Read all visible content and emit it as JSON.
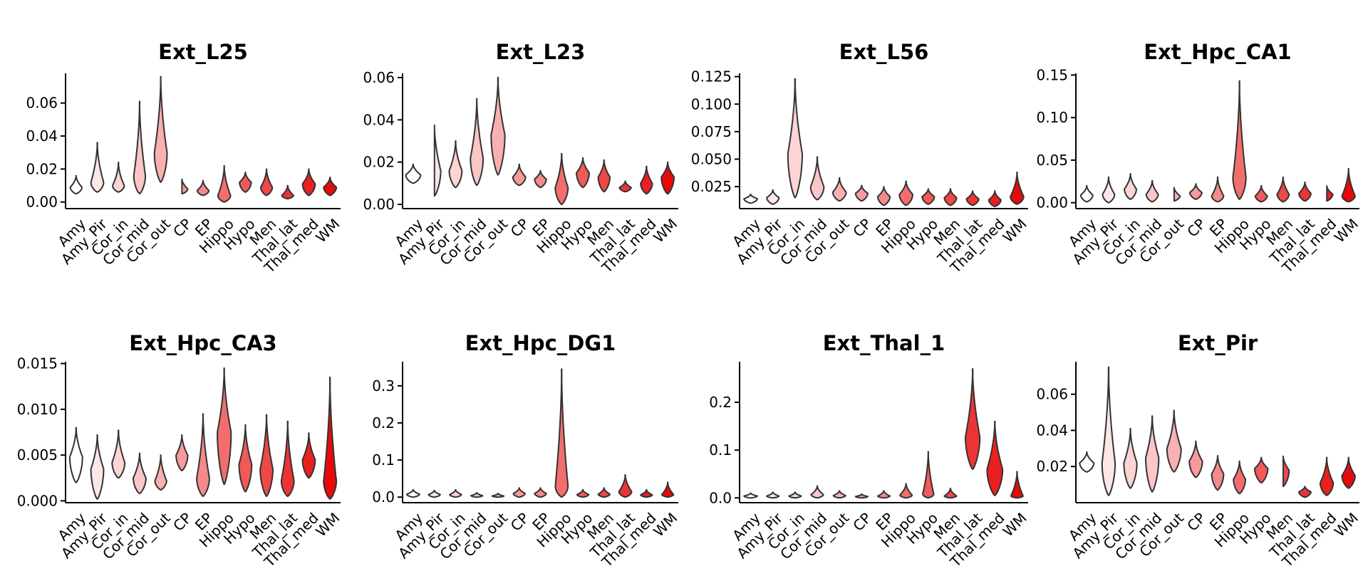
{
  "chart_data": [
    {
      "type": "violin",
      "title": "Ext_L25",
      "categories": [
        "Amy",
        "Amy_Pir",
        "Cor_in",
        "Cor_mid",
        "Cor_out",
        "CP",
        "EP",
        "Hippo",
        "Hypo",
        "Men",
        "Thal_lat",
        "Thal_med",
        "WM"
      ],
      "ylim": [
        -0.004,
        0.078
      ],
      "yticks": [
        0.0,
        0.02,
        0.04,
        0.06
      ],
      "ytick_labels": [
        "0.00",
        "0.02",
        "0.04",
        "0.06"
      ],
      "violins": [
        {
          "min": 0.005,
          "max": 0.016,
          "peak": 0.009,
          "width": 0.55
        },
        {
          "min": 0.006,
          "max": 0.036,
          "peak": 0.012,
          "width": 0.6
        },
        {
          "min": 0.006,
          "max": 0.024,
          "peak": 0.01,
          "width": 0.55
        },
        {
          "min": 0.005,
          "max": 0.061,
          "peak": 0.016,
          "width": 0.55
        },
        {
          "min": 0.012,
          "max": 0.076,
          "peak": 0.03,
          "width": 0.6
        },
        {
          "min": 0.005,
          "max": 0.014,
          "peak": 0.008,
          "width": 0.55
        },
        {
          "min": 0.004,
          "max": 0.013,
          "peak": 0.007,
          "width": 0.55
        },
        {
          "min": 0.0,
          "max": 0.022,
          "peak": 0.004,
          "width": 0.6
        },
        {
          "min": 0.006,
          "max": 0.018,
          "peak": 0.012,
          "width": 0.55
        },
        {
          "min": 0.004,
          "max": 0.02,
          "peak": 0.009,
          "width": 0.55
        },
        {
          "min": 0.002,
          "max": 0.01,
          "peak": 0.004,
          "width": 0.55
        },
        {
          "min": 0.004,
          "max": 0.02,
          "peak": 0.011,
          "width": 0.6
        },
        {
          "min": 0.004,
          "max": 0.015,
          "peak": 0.009,
          "width": 0.6
        }
      ]
    },
    {
      "type": "violin",
      "title": "Ext_L23",
      "categories": [
        "Amy",
        "Amy_Pir",
        "Cor_in",
        "Cor_mid",
        "Cor_out",
        "CP",
        "EP",
        "Hippo",
        "Hypo",
        "Men",
        "Thal_lat",
        "Thal_med",
        "WM"
      ],
      "ylim": [
        -0.002,
        0.062
      ],
      "yticks": [
        0.0,
        0.02,
        0.04,
        0.06
      ],
      "ytick_labels": [
        "0.00",
        "0.02",
        "0.04",
        "0.06"
      ],
      "violins": [
        {
          "min": 0.01,
          "max": 0.019,
          "peak": 0.014,
          "width": 0.7
        },
        {
          "min": 0.004,
          "max": 0.038,
          "peak": 0.016,
          "width": 0.6
        },
        {
          "min": 0.008,
          "max": 0.03,
          "peak": 0.016,
          "width": 0.6
        },
        {
          "min": 0.009,
          "max": 0.05,
          "peak": 0.022,
          "width": 0.6
        },
        {
          "min": 0.014,
          "max": 0.06,
          "peak": 0.033,
          "width": 0.65
        },
        {
          "min": 0.009,
          "max": 0.019,
          "peak": 0.013,
          "width": 0.6
        },
        {
          "min": 0.008,
          "max": 0.016,
          "peak": 0.012,
          "width": 0.55
        },
        {
          "min": 0.0,
          "max": 0.024,
          "peak": 0.008,
          "width": 0.6
        },
        {
          "min": 0.008,
          "max": 0.022,
          "peak": 0.015,
          "width": 0.6
        },
        {
          "min": 0.006,
          "max": 0.021,
          "peak": 0.013,
          "width": 0.55
        },
        {
          "min": 0.006,
          "max": 0.011,
          "peak": 0.008,
          "width": 0.55
        },
        {
          "min": 0.005,
          "max": 0.018,
          "peak": 0.01,
          "width": 0.55
        },
        {
          "min": 0.005,
          "max": 0.02,
          "peak": 0.013,
          "width": 0.6
        }
      ]
    },
    {
      "type": "violin",
      "title": "Ext_L56",
      "categories": [
        "Amy",
        "Amy_Pir",
        "Cor_in",
        "Cor_mid",
        "Cor_out",
        "CP",
        "EP",
        "Hippo",
        "Hypo",
        "Men",
        "Thal_lat",
        "Thal_med",
        "WM"
      ],
      "ylim": [
        0.005,
        0.128
      ],
      "yticks": [
        0.025,
        0.05,
        0.075,
        0.1,
        0.125
      ],
      "ytick_labels": [
        "0.025",
        "0.050",
        "0.075",
        "0.100",
        "0.125"
      ],
      "violins": [
        {
          "min": 0.01,
          "max": 0.018,
          "peak": 0.014,
          "width": 0.6
        },
        {
          "min": 0.009,
          "max": 0.022,
          "peak": 0.015,
          "width": 0.55
        },
        {
          "min": 0.015,
          "max": 0.123,
          "peak": 0.055,
          "width": 0.65
        },
        {
          "min": 0.013,
          "max": 0.052,
          "peak": 0.025,
          "width": 0.6
        },
        {
          "min": 0.012,
          "max": 0.033,
          "peak": 0.02,
          "width": 0.6
        },
        {
          "min": 0.012,
          "max": 0.026,
          "peak": 0.019,
          "width": 0.55
        },
        {
          "min": 0.008,
          "max": 0.025,
          "peak": 0.016,
          "width": 0.55
        },
        {
          "min": 0.008,
          "max": 0.03,
          "peak": 0.018,
          "width": 0.6
        },
        {
          "min": 0.009,
          "max": 0.023,
          "peak": 0.016,
          "width": 0.55
        },
        {
          "min": 0.008,
          "max": 0.023,
          "peak": 0.015,
          "width": 0.55
        },
        {
          "min": 0.008,
          "max": 0.021,
          "peak": 0.014,
          "width": 0.55
        },
        {
          "min": 0.007,
          "max": 0.021,
          "peak": 0.013,
          "width": 0.55
        },
        {
          "min": 0.009,
          "max": 0.038,
          "peak": 0.016,
          "width": 0.6
        }
      ]
    },
    {
      "type": "violin",
      "title": "Ext_Hpc_CA1",
      "categories": [
        "Amy",
        "Amy_Pir",
        "Cor_in",
        "Cor_mid",
        "Cor_out",
        "CP",
        "EP",
        "Hippo",
        "Hypo",
        "Men",
        "Thal_lat",
        "Thal_med",
        "WM"
      ],
      "ylim": [
        -0.007,
        0.152
      ],
      "yticks": [
        0.0,
        0.05,
        0.1,
        0.15
      ],
      "ytick_labels": [
        "0.00",
        "0.05",
        "0.10",
        "0.15"
      ],
      "violins": [
        {
          "min": 0.001,
          "max": 0.02,
          "peak": 0.009,
          "width": 0.55
        },
        {
          "min": 0.0,
          "max": 0.03,
          "peak": 0.01,
          "width": 0.55
        },
        {
          "min": 0.004,
          "max": 0.034,
          "peak": 0.016,
          "width": 0.55
        },
        {
          "min": 0.001,
          "max": 0.026,
          "peak": 0.01,
          "width": 0.55
        },
        {
          "min": 0.002,
          "max": 0.018,
          "peak": 0.008,
          "width": 0.55
        },
        {
          "min": 0.004,
          "max": 0.022,
          "peak": 0.012,
          "width": 0.55
        },
        {
          "min": 0.001,
          "max": 0.03,
          "peak": 0.008,
          "width": 0.55
        },
        {
          "min": 0.004,
          "max": 0.143,
          "peak": 0.03,
          "width": 0.6
        },
        {
          "min": 0.001,
          "max": 0.02,
          "peak": 0.008,
          "width": 0.55
        },
        {
          "min": 0.001,
          "max": 0.03,
          "peak": 0.01,
          "width": 0.55
        },
        {
          "min": 0.002,
          "max": 0.024,
          "peak": 0.011,
          "width": 0.55
        },
        {
          "min": 0.002,
          "max": 0.02,
          "peak": 0.01,
          "width": 0.55
        },
        {
          "min": 0.001,
          "max": 0.04,
          "peak": 0.008,
          "width": 0.6
        }
      ]
    },
    {
      "type": "violin",
      "title": "Ext_Hpc_CA3",
      "categories": [
        "Amy",
        "Amy_Pir",
        "Cor_in",
        "Cor_mid",
        "Cor_out",
        "CP",
        "EP",
        "Hippo",
        "Hypo",
        "Men",
        "Thal_lat",
        "Thal_med",
        "WM"
      ],
      "ylim": [
        -0.0002,
        0.0152
      ],
      "yticks": [
        0.0,
        0.005,
        0.01,
        0.015
      ],
      "ytick_labels": [
        "0.000",
        "0.005",
        "0.010",
        "0.015"
      ],
      "violins": [
        {
          "min": 0.002,
          "max": 0.008,
          "peak": 0.0048,
          "width": 0.6
        },
        {
          "min": 0.0002,
          "max": 0.0072,
          "peak": 0.0035,
          "width": 0.6
        },
        {
          "min": 0.0025,
          "max": 0.0077,
          "peak": 0.0042,
          "width": 0.6
        },
        {
          "min": 0.0008,
          "max": 0.0052,
          "peak": 0.0025,
          "width": 0.6
        },
        {
          "min": 0.0012,
          "max": 0.005,
          "peak": 0.0022,
          "width": 0.55
        },
        {
          "min": 0.0033,
          "max": 0.0072,
          "peak": 0.005,
          "width": 0.55
        },
        {
          "min": 0.0005,
          "max": 0.0095,
          "peak": 0.0025,
          "width": 0.6
        },
        {
          "min": 0.0018,
          "max": 0.0145,
          "peak": 0.0075,
          "width": 0.65
        },
        {
          "min": 0.001,
          "max": 0.0083,
          "peak": 0.004,
          "width": 0.6
        },
        {
          "min": 0.0005,
          "max": 0.0094,
          "peak": 0.0035,
          "width": 0.6
        },
        {
          "min": 0.0005,
          "max": 0.0087,
          "peak": 0.0022,
          "width": 0.6
        },
        {
          "min": 0.0025,
          "max": 0.0074,
          "peak": 0.0045,
          "width": 0.6
        },
        {
          "min": 0.0002,
          "max": 0.0135,
          "peak": 0.0022,
          "width": 0.6
        }
      ]
    },
    {
      "type": "violin",
      "title": "Ext_Hpc_DG1",
      "categories": [
        "Amy",
        "Amy_Pir",
        "Cor_in",
        "Cor_mid",
        "Cor_out",
        "CP",
        "EP",
        "Hippo",
        "Hypo",
        "Men",
        "Thal_lat",
        "Thal_med",
        "WM"
      ],
      "ylim": [
        -0.015,
        0.365
      ],
      "yticks": [
        0.0,
        0.1,
        0.2,
        0.3
      ],
      "ytick_labels": [
        "0.0",
        "0.1",
        "0.2",
        "0.3"
      ],
      "violins": [
        {
          "min": 0.0,
          "max": 0.02,
          "peak": 0.008,
          "width": 0.6
        },
        {
          "min": 0.0,
          "max": 0.018,
          "peak": 0.007,
          "width": 0.55
        },
        {
          "min": 0.0,
          "max": 0.02,
          "peak": 0.007,
          "width": 0.55
        },
        {
          "min": 0.0,
          "max": 0.012,
          "peak": 0.004,
          "width": 0.55
        },
        {
          "min": 0.0,
          "max": 0.01,
          "peak": 0.003,
          "width": 0.55
        },
        {
          "min": 0.0,
          "max": 0.025,
          "peak": 0.01,
          "width": 0.55
        },
        {
          "min": 0.0,
          "max": 0.025,
          "peak": 0.01,
          "width": 0.55
        },
        {
          "min": 0.0,
          "max": 0.345,
          "peak": 0.03,
          "width": 0.6
        },
        {
          "min": 0.0,
          "max": 0.02,
          "peak": 0.007,
          "width": 0.55
        },
        {
          "min": 0.0,
          "max": 0.025,
          "peak": 0.008,
          "width": 0.55
        },
        {
          "min": 0.0,
          "max": 0.06,
          "peak": 0.015,
          "width": 0.6
        },
        {
          "min": 0.0,
          "max": 0.02,
          "peak": 0.006,
          "width": 0.55
        },
        {
          "min": 0.0,
          "max": 0.04,
          "peak": 0.007,
          "width": 0.55
        }
      ]
    },
    {
      "type": "violin",
      "title": "Ext_Thal_1",
      "categories": [
        "Amy",
        "Amy_Pir",
        "Cor_in",
        "Cor_mid",
        "Cor_out",
        "CP",
        "EP",
        "Hippo",
        "Hypo",
        "Men",
        "Thal_lat",
        "Thal_med",
        "WM"
      ],
      "ylim": [
        -0.01,
        0.285
      ],
      "yticks": [
        0.0,
        0.1,
        0.2
      ],
      "ytick_labels": [
        "0.0",
        "0.1",
        "0.2"
      ],
      "violins": [
        {
          "min": 0.0,
          "max": 0.01,
          "peak": 0.004,
          "width": 0.6
        },
        {
          "min": 0.0,
          "max": 0.012,
          "peak": 0.004,
          "width": 0.55
        },
        {
          "min": 0.0,
          "max": 0.012,
          "peak": 0.004,
          "width": 0.55
        },
        {
          "min": 0.0,
          "max": 0.025,
          "peak": 0.007,
          "width": 0.55
        },
        {
          "min": 0.0,
          "max": 0.015,
          "peak": 0.005,
          "width": 0.55
        },
        {
          "min": 0.0,
          "max": 0.008,
          "peak": 0.003,
          "width": 0.55
        },
        {
          "min": 0.0,
          "max": 0.015,
          "peak": 0.004,
          "width": 0.55
        },
        {
          "min": 0.0,
          "max": 0.03,
          "peak": 0.006,
          "width": 0.55
        },
        {
          "min": 0.0,
          "max": 0.097,
          "peak": 0.008,
          "width": 0.5
        },
        {
          "min": 0.0,
          "max": 0.02,
          "peak": 0.004,
          "width": 0.55
        },
        {
          "min": 0.06,
          "max": 0.27,
          "peak": 0.128,
          "width": 0.65
        },
        {
          "min": 0.005,
          "max": 0.16,
          "peak": 0.06,
          "width": 0.7
        },
        {
          "min": 0.0,
          "max": 0.055,
          "peak": 0.004,
          "width": 0.55
        }
      ]
    },
    {
      "type": "violin",
      "title": "Ext_Pir",
      "categories": [
        "Amy",
        "Amy_Pir",
        "Cor_in",
        "Cor_mid",
        "Cor_out",
        "CP",
        "EP",
        "Hippo",
        "Hypo",
        "Men",
        "Thal_lat",
        "Thal_med",
        "WM"
      ],
      "ylim": [
        0.0,
        0.078
      ],
      "yticks": [
        0.02,
        0.04,
        0.06
      ],
      "ytick_labels": [
        "0.02",
        "0.04",
        "0.06"
      ],
      "violins": [
        {
          "min": 0.017,
          "max": 0.028,
          "peak": 0.022,
          "width": 0.65
        },
        {
          "min": 0.004,
          "max": 0.075,
          "peak": 0.022,
          "width": 0.6
        },
        {
          "min": 0.008,
          "max": 0.041,
          "peak": 0.022,
          "width": 0.6
        },
        {
          "min": 0.006,
          "max": 0.048,
          "peak": 0.025,
          "width": 0.6
        },
        {
          "min": 0.017,
          "max": 0.051,
          "peak": 0.03,
          "width": 0.65
        },
        {
          "min": 0.014,
          "max": 0.034,
          "peak": 0.023,
          "width": 0.6
        },
        {
          "min": 0.007,
          "max": 0.026,
          "peak": 0.016,
          "width": 0.55
        },
        {
          "min": 0.005,
          "max": 0.023,
          "peak": 0.013,
          "width": 0.55
        },
        {
          "min": 0.011,
          "max": 0.025,
          "peak": 0.019,
          "width": 0.6
        },
        {
          "min": 0.009,
          "max": 0.026,
          "peak": 0.018,
          "width": 0.55
        },
        {
          "min": 0.003,
          "max": 0.009,
          "peak": 0.006,
          "width": 0.55
        },
        {
          "min": 0.004,
          "max": 0.025,
          "peak": 0.011,
          "width": 0.6
        },
        {
          "min": 0.008,
          "max": 0.025,
          "peak": 0.015,
          "width": 0.6
        }
      ]
    }
  ],
  "colors": {
    "violin_fill_gradient": [
      "#ffffff",
      "#fde6e6",
      "#fcd4d4",
      "#fbc6c6",
      "#f9b0b0",
      "#f79a9a",
      "#f58a8a",
      "#f26e6e",
      "#f05a5a",
      "#ee4848",
      "#ec3434",
      "#ea2020",
      "#e80a0a"
    ],
    "outline": "#333333",
    "axis": "#000000"
  }
}
